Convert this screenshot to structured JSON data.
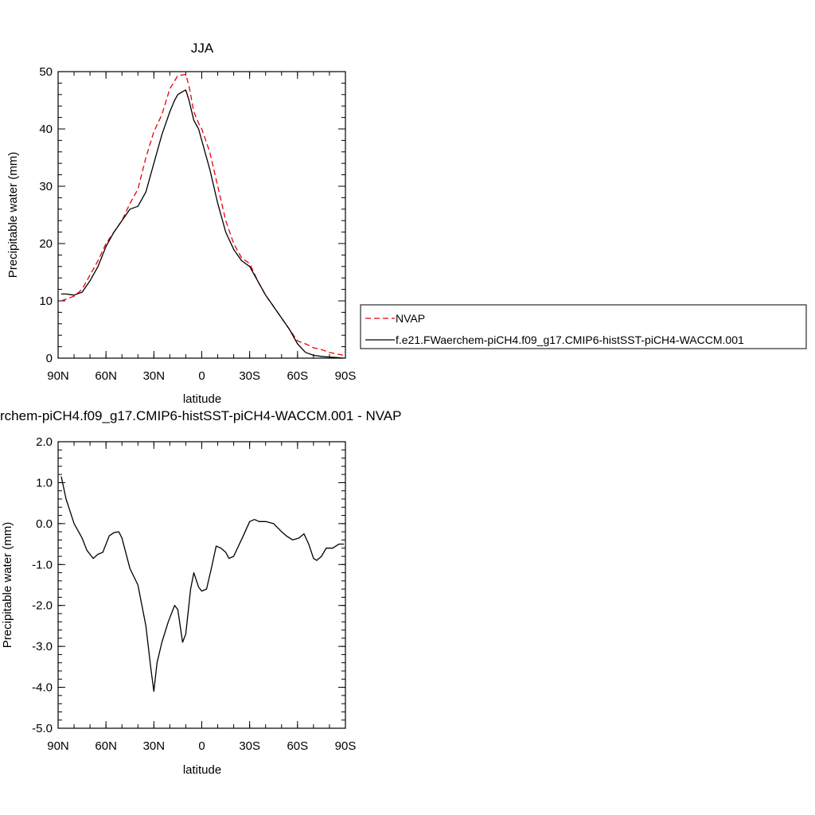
{
  "chart_data": [
    {
      "type": "line",
      "title": "JJA",
      "xlabel": "latitude",
      "ylabel": "Precipitable water (mm)",
      "xlim": [
        90,
        -90
      ],
      "ylim": [
        0,
        50
      ],
      "x_ticks": [
        90,
        60,
        30,
        0,
        -30,
        -60,
        -90
      ],
      "x_tick_labels": [
        "90N",
        "60N",
        "30N",
        "0",
        "30S",
        "60S",
        "90S"
      ],
      "y_ticks": [
        0,
        10,
        20,
        30,
        40,
        50
      ],
      "y_tick_labels": [
        "0",
        "10",
        "20",
        "30",
        "40",
        "50"
      ],
      "legend_position": "outside-right",
      "series": [
        {
          "name": "NVAP",
          "color": "#e8000b",
          "style": "dashed",
          "x": [
            88,
            80,
            75,
            70,
            65,
            60,
            55,
            50,
            45,
            40,
            35,
            30,
            25,
            20,
            15,
            10,
            8,
            5,
            2,
            0,
            -5,
            -10,
            -15,
            -20,
            -25,
            -30,
            -35,
            -40,
            -45,
            -50,
            -55,
            -60,
            -65,
            -70,
            -75,
            -80,
            -85,
            -89
          ],
          "y": [
            10.0,
            10.8,
            12.0,
            14.5,
            17.0,
            20.0,
            22.0,
            24.0,
            27.0,
            29.5,
            35.0,
            39.5,
            42.5,
            47.0,
            49.3,
            49.5,
            47.5,
            43.0,
            41.0,
            40.0,
            36.0,
            30.0,
            24.0,
            20.0,
            17.5,
            16.5,
            13.5,
            11.0,
            9.0,
            7.0,
            5.0,
            3.0,
            2.5,
            1.8,
            1.5,
            1.0,
            0.7,
            0.5
          ]
        },
        {
          "name": "f.e21.FWaerchem-piCH4.f09_g17.CMIP6-histSST-piCH4-WACCM.001",
          "color": "#000000",
          "style": "solid",
          "x": [
            88,
            85,
            80,
            75,
            70,
            65,
            60,
            55,
            50,
            45,
            40,
            35,
            32,
            30,
            25,
            20,
            17,
            15,
            12,
            10,
            8,
            5,
            2,
            0,
            -5,
            -10,
            -15,
            -20,
            -25,
            -30,
            -35,
            -40,
            -45,
            -50,
            -55,
            -60,
            -65,
            -70,
            -75,
            -80,
            -85,
            -89
          ],
          "y": [
            11.2,
            11.2,
            11.0,
            11.5,
            13.5,
            16.0,
            19.5,
            22.0,
            24.0,
            26.0,
            26.5,
            29.0,
            32.0,
            34.0,
            39.0,
            43.0,
            45.0,
            46.0,
            46.5,
            46.8,
            45.0,
            41.5,
            40.0,
            38.0,
            33.0,
            27.0,
            22.0,
            19.0,
            17.0,
            16.0,
            13.5,
            11.0,
            9.0,
            7.0,
            5.0,
            2.5,
            1.0,
            0.5,
            0.3,
            0.2,
            0.1,
            0.0
          ]
        }
      ],
      "legend_entries": [
        "NVAP",
        "f.e21.FWaerchem-piCH4.f09_g17.CMIP6-histSST-piCH4-WACCM.001"
      ]
    },
    {
      "type": "line",
      "title": "rchem-piCH4.f09_g17.CMIP6-histSST-piCH4-WACCM.001 - NVAP",
      "xlabel": "latitude",
      "ylabel": "Precipitable water (mm)",
      "xlim": [
        90,
        -90
      ],
      "ylim": [
        -5.0,
        2.0
      ],
      "x_ticks": [
        90,
        60,
        30,
        0,
        -30,
        -60,
        -90
      ],
      "x_tick_labels": [
        "90N",
        "60N",
        "30N",
        "0",
        "30S",
        "60S",
        "90S"
      ],
      "y_ticks": [
        -5,
        -4,
        -3,
        -2,
        -1,
        0,
        1,
        2
      ],
      "y_tick_labels": [
        "-5.0",
        "-4.0",
        "-3.0",
        "-2.0",
        "-1.0",
        "0.0",
        "1.0",
        "2.0"
      ],
      "series": [
        {
          "name": "",
          "color": "#000000",
          "style": "solid",
          "x": [
            88,
            85,
            80,
            75,
            72,
            68,
            65,
            62,
            58,
            55,
            52,
            50,
            45,
            40,
            35,
            32,
            30,
            28,
            25,
            21,
            17,
            15,
            12,
            10,
            7,
            5,
            2,
            0,
            -3,
            -6,
            -9,
            -12,
            -15,
            -17,
            -20,
            -23,
            -26,
            -30,
            -33,
            -36,
            -40,
            -45,
            -50,
            -53,
            -57,
            -61,
            -64,
            -67,
            -70,
            -72,
            -75,
            -78,
            -82,
            -86,
            -89
          ],
          "y": [
            1.15,
            0.6,
            0.0,
            -0.35,
            -0.65,
            -0.85,
            -0.75,
            -0.7,
            -0.3,
            -0.22,
            -0.2,
            -0.35,
            -1.1,
            -1.5,
            -2.5,
            -3.5,
            -4.1,
            -3.4,
            -2.9,
            -2.4,
            -2.0,
            -2.1,
            -2.9,
            -2.7,
            -1.6,
            -1.2,
            -1.55,
            -1.65,
            -1.6,
            -1.1,
            -0.55,
            -0.6,
            -0.7,
            -0.85,
            -0.8,
            -0.55,
            -0.3,
            0.05,
            0.1,
            0.05,
            0.05,
            0.0,
            -0.2,
            -0.3,
            -0.4,
            -0.35,
            -0.25,
            -0.5,
            -0.85,
            -0.9,
            -0.8,
            -0.6,
            -0.6,
            -0.5,
            -0.5
          ]
        }
      ]
    }
  ]
}
